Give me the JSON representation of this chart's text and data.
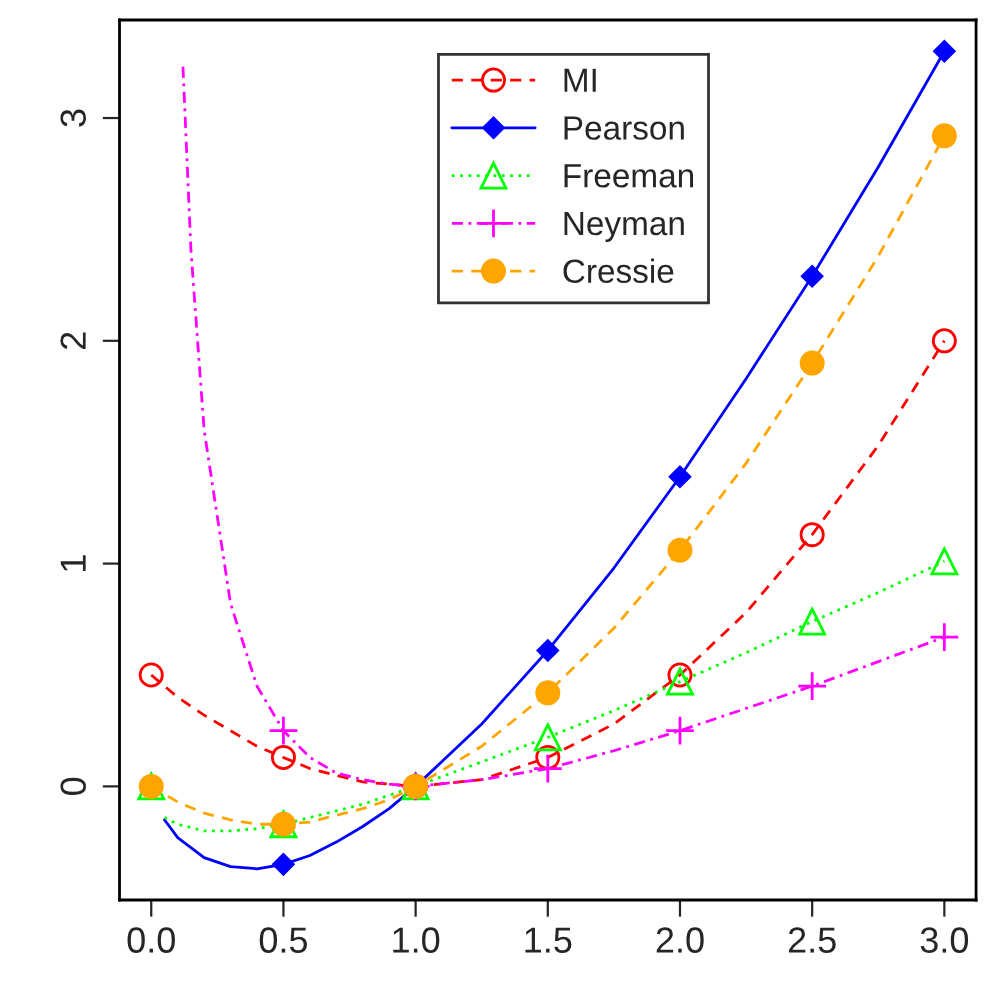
{
  "chart_data": {
    "type": "line",
    "xlim": [
      -0.12,
      3.12
    ],
    "ylim": [
      -0.51,
      3.44
    ],
    "xticks": [
      {
        "value": 0,
        "label": "0.0"
      },
      {
        "value": 0.5,
        "label": "0.5"
      },
      {
        "value": 1,
        "label": "1.0"
      },
      {
        "value": 1.5,
        "label": "1.5"
      },
      {
        "value": 2,
        "label": "2.0"
      },
      {
        "value": 2.5,
        "label": "2.5"
      },
      {
        "value": 3,
        "label": "3.0"
      }
    ],
    "yticks": [
      0,
      1,
      2,
      3
    ],
    "grid": false,
    "legend": "top",
    "series": [
      {
        "color": "#ff0000",
        "line_style": "dashed",
        "x": [
          0,
          0.1,
          0.2,
          0.3,
          0.4,
          0.5,
          0.6,
          0.7,
          0.8,
          0.9,
          1,
          1.25,
          1.5,
          1.75,
          2,
          2.25,
          2.5,
          2.75,
          3
        ],
        "values": [
          0.5,
          0.4,
          0.32,
          0.25,
          0.18,
          0.13,
          0.08,
          0.05,
          0.02,
          0.01,
          0,
          0.03,
          0.13,
          0.28,
          0.5,
          0.78,
          1.13,
          1.53,
          2.0
        ]
      },
      {
        "color": "#0000ff",
        "line_style": "solid",
        "x": [
          0.05,
          0.1,
          0.2,
          0.3,
          0.4,
          0.5,
          0.6,
          0.7,
          0.8,
          0.9,
          1,
          1.25,
          1.5,
          1.75,
          2,
          2.25,
          2.5,
          2.75,
          3
        ],
        "values": [
          -0.15,
          -0.23,
          -0.32,
          -0.36,
          -0.37,
          -0.35,
          -0.31,
          -0.25,
          -0.18,
          -0.1,
          0,
          0.28,
          0.61,
          0.98,
          1.39,
          1.83,
          2.29,
          2.78,
          3.3
        ]
      },
      {
        "color": "#00ff00",
        "line_style": "dotted",
        "x": [
          0.05,
          0.1,
          0.2,
          0.3,
          0.4,
          0.5,
          0.6,
          0.7,
          0.8,
          0.9,
          1,
          1.25,
          1.5,
          1.75,
          2,
          2.25,
          2.5,
          2.75,
          3
        ],
        "values": [
          -0.14,
          -0.17,
          -0.2,
          -0.2,
          -0.19,
          -0.17,
          -0.14,
          -0.11,
          -0.08,
          -0.04,
          0,
          0.11,
          0.22,
          0.34,
          0.47,
          0.6,
          0.74,
          0.87,
          1.01
        ]
      },
      {
        "color": "#ff00ff",
        "line_style": "dashdot",
        "x": [
          0.12,
          0.15,
          0.2,
          0.3,
          0.4,
          0.5,
          0.6,
          0.7,
          0.8,
          0.9,
          1,
          1.25,
          1.5,
          1.75,
          2,
          2.25,
          2.5,
          2.75,
          3
        ],
        "values": [
          3.23,
          2.41,
          1.6,
          0.82,
          0.45,
          0.25,
          0.13,
          0.06,
          0.03,
          0.01,
          0,
          0.03,
          0.08,
          0.16,
          0.25,
          0.35,
          0.45,
          0.56,
          0.67
        ]
      },
      {
        "color": "#ffa500",
        "line_style": "dashed",
        "x": [
          0,
          0.1,
          0.2,
          0.3,
          0.4,
          0.5,
          0.6,
          0.7,
          0.8,
          0.9,
          1,
          1.25,
          1.5,
          1.75,
          2,
          2.25,
          2.5,
          2.75,
          3
        ],
        "values": [
          0,
          -0.07,
          -0.12,
          -0.15,
          -0.17,
          -0.17,
          -0.16,
          -0.13,
          -0.1,
          -0.06,
          0,
          0.18,
          0.42,
          0.71,
          1.06,
          1.45,
          1.9,
          2.38,
          2.92
        ]
      },
      {
        "type": "scatter",
        "name": "MI",
        "color": "#ff0000",
        "marker": "circle_open",
        "line_style": "dashed",
        "x": [
          0,
          0.5,
          1,
          1.5,
          2,
          2.5,
          3
        ],
        "values": [
          0.5,
          0.13,
          0,
          0.13,
          0.5,
          1.13,
          2.0
        ]
      },
      {
        "type": "scatter",
        "name": "Pearson",
        "color": "#0000ff",
        "marker": "diamond",
        "line_style": "solid",
        "x": [
          0.5,
          1.5,
          2,
          2.5,
          3
        ],
        "values": [
          -0.35,
          0.61,
          1.39,
          2.29,
          3.3
        ]
      },
      {
        "type": "scatter",
        "name": "Freeman",
        "color": "#00ff00",
        "marker": "triangle_open",
        "line_style": "dotted",
        "x": [
          0,
          0.5,
          1,
          1.5,
          2,
          2.5,
          3
        ],
        "values": [
          0,
          -0.17,
          0,
          0.22,
          0.47,
          0.74,
          1.01
        ]
      },
      {
        "type": "scatter",
        "name": "Neyman",
        "color": "#ff00ff",
        "marker": "cross",
        "line_style": "dashdot",
        "x": [
          0.5,
          1,
          1.5,
          2,
          2.5,
          3
        ],
        "values": [
          0.25,
          0,
          0.08,
          0.25,
          0.45,
          0.67
        ]
      },
      {
        "type": "scatter",
        "name": "Cressie",
        "color": "#ffa500",
        "marker": "circle",
        "line_style": "dashed",
        "x": [
          0,
          0.5,
          1,
          1.5,
          2,
          2.5,
          3
        ],
        "values": [
          0,
          -0.17,
          0,
          0.42,
          1.06,
          1.9,
          2.92
        ]
      }
    ]
  }
}
